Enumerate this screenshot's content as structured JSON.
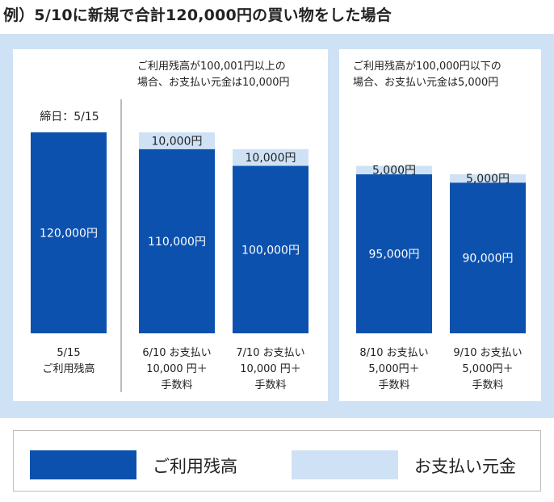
{
  "title": "例）5/10に新規で合計120,000円の買い物をした場合",
  "notes": {
    "left": [
      "ご利用残高が100,001円以上の",
      "場合、お支払い元金は10,000円"
    ],
    "right": [
      "ご利用残高が100,000円以下の",
      "場合、お支払い元金は5,000円"
    ]
  },
  "shime_label": "締日：5/15",
  "colors": {
    "balance": "#0d51ae",
    "payment": "#cfe2f5"
  },
  "legend": {
    "balance": "ご利用残高",
    "payment": "お支払い元金"
  },
  "chart_data": {
    "type": "bar",
    "stacked": true,
    "unit": "円",
    "categories": [
      [
        "5/15",
        "ご利用残高"
      ],
      [
        "6/10 お支払い",
        "10,000 円＋",
        "手数料"
      ],
      [
        "7/10 お支払い",
        "10,000 円＋",
        "手数料"
      ],
      [
        "8/10 お支払い",
        "5,000円＋",
        "手数料"
      ],
      [
        "9/10 お支払い",
        "5,000円＋",
        "手数料"
      ]
    ],
    "series": [
      {
        "name": "ご利用残高",
        "values": [
          120000,
          110000,
          100000,
          95000,
          90000
        ],
        "labels": [
          "120,000円",
          "110,000円",
          "100,000円",
          "95,000円",
          "90,000円"
        ]
      },
      {
        "name": "お支払い元金",
        "values": [
          0,
          10000,
          10000,
          5000,
          5000
        ],
        "labels": [
          "",
          "10,000円",
          "10,000円",
          "5,000円",
          "5,000円"
        ]
      }
    ]
  }
}
